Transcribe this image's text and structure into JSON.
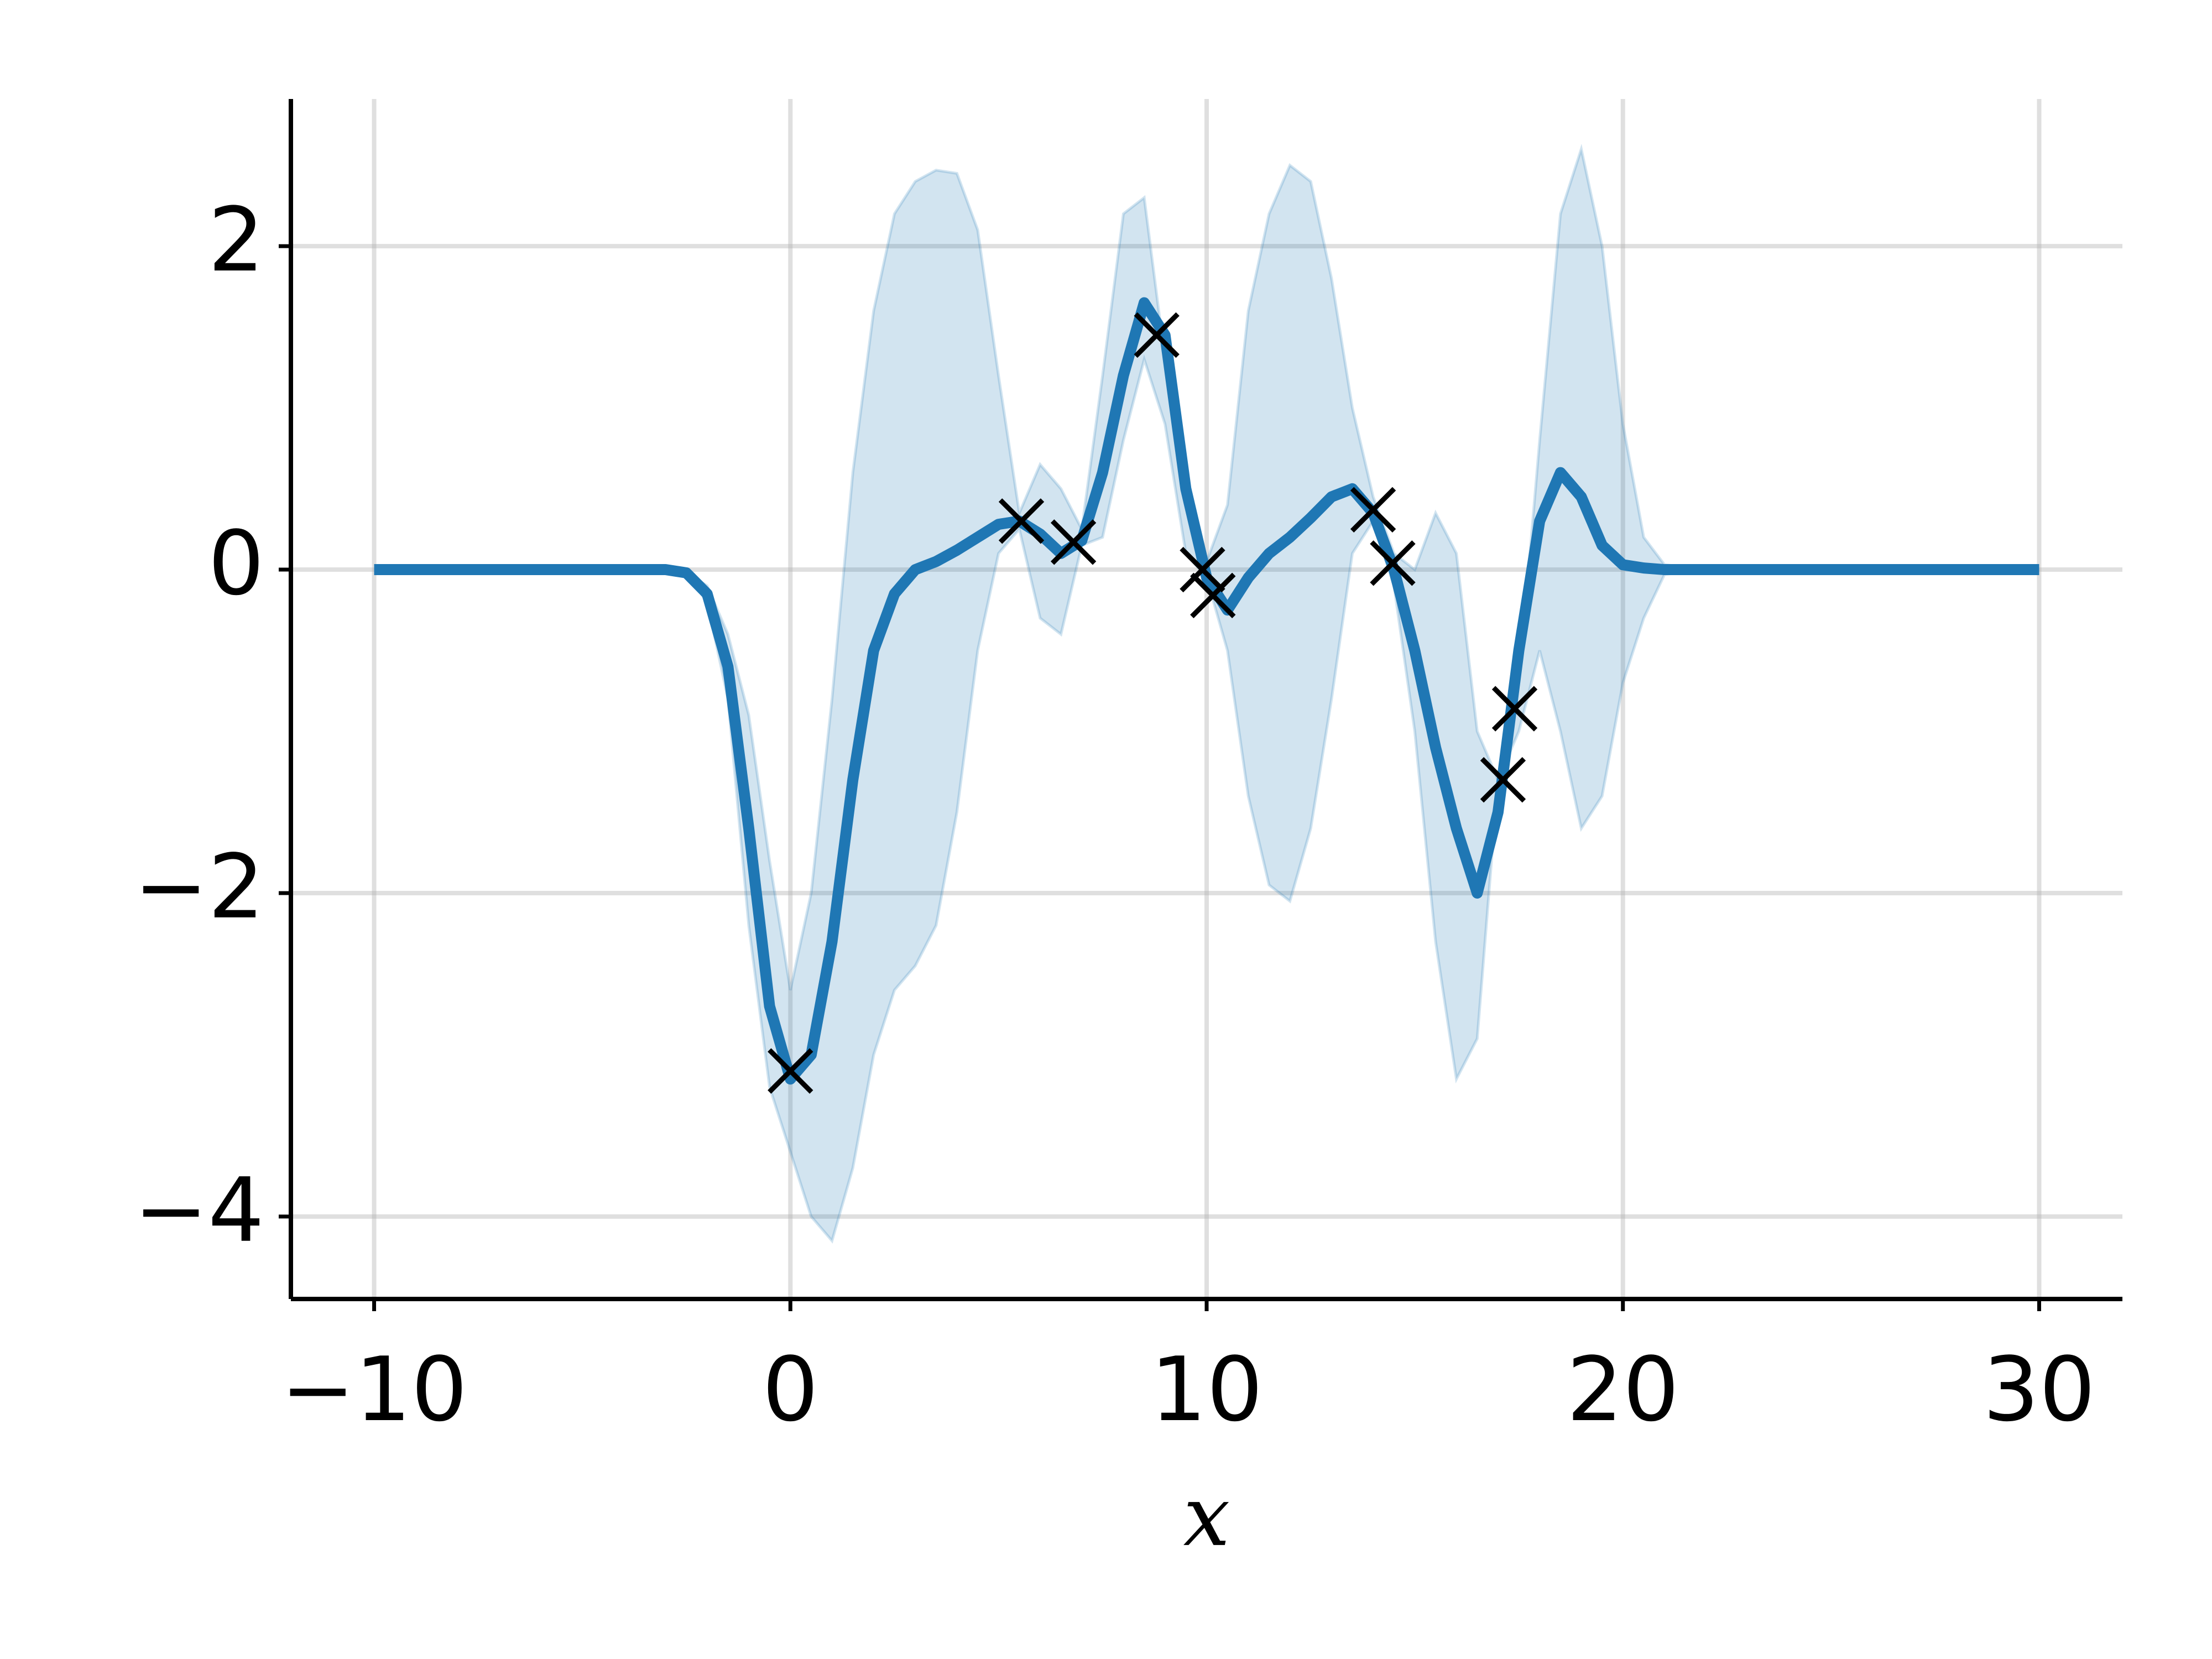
{
  "chart_data": {
    "type": "line",
    "xlabel": "x",
    "xlim": [
      -12,
      32
    ],
    "ylim": [
      -4.51,
      2.91
    ],
    "xticks": [
      {
        "value": -10,
        "label": "−10"
      },
      0,
      10,
      20,
      30
    ],
    "yticks": [
      {
        "value": -4,
        "label": "−4"
      },
      {
        "value": -2,
        "label": "−2"
      },
      0,
      2
    ],
    "grid": true,
    "x": [
      -10,
      -5,
      -3,
      -2.5,
      -2,
      -1.5,
      -1,
      -0.5,
      0,
      0.5,
      1,
      1.5,
      2,
      2.5,
      3,
      3.5,
      4,
      4.5,
      5,
      5.5,
      6,
      6.5,
      7,
      7.5,
      8,
      8.5,
      9,
      9.5,
      10,
      10.5,
      11,
      11.5,
      12,
      12.5,
      13,
      13.5,
      14,
      14.5,
      15,
      15.5,
      16,
      16.5,
      17,
      17.5,
      18,
      18.5,
      19,
      19.5,
      20,
      20.5,
      21,
      22,
      25,
      30
    ],
    "mean": {
      "color": "#1f77b4",
      "values": [
        0,
        0,
        0,
        -0.02,
        -0.15,
        -0.6,
        -1.6,
        -2.7,
        -3.15,
        -3.0,
        -2.3,
        -1.3,
        -0.5,
        -0.15,
        0.0,
        0.05,
        0.12,
        0.2,
        0.28,
        0.3,
        0.22,
        0.1,
        0.18,
        0.6,
        1.2,
        1.65,
        1.45,
        0.5,
        -0.05,
        -0.25,
        -0.05,
        0.1,
        0.2,
        0.32,
        0.45,
        0.5,
        0.35,
        0.0,
        -0.5,
        -1.1,
        -1.6,
        -2.0,
        -1.5,
        -0.5,
        0.3,
        0.6,
        0.45,
        0.15,
        0.03,
        0.01,
        0.0,
        0,
        0,
        0
      ]
    },
    "band": {
      "color": "#1f77b4",
      "upper": [
        0,
        0,
        0,
        -0.02,
        -0.1,
        -0.4,
        -0.9,
        -1.8,
        -2.6,
        -2.0,
        -0.8,
        0.6,
        1.6,
        2.2,
        2.4,
        2.47,
        2.45,
        2.1,
        1.2,
        0.35,
        0.65,
        0.5,
        0.25,
        1.2,
        2.2,
        2.3,
        1.3,
        0.5,
        0.05,
        0.4,
        1.6,
        2.2,
        2.5,
        2.4,
        1.8,
        1.0,
        0.45,
        0.1,
        0.0,
        0.35,
        0.1,
        -1.0,
        -1.3,
        -0.7,
        0.8,
        2.2,
        2.6,
        2.0,
        0.9,
        0.2,
        0.03,
        0,
        0,
        0
      ],
      "lower": [
        0,
        0,
        0,
        -0.02,
        -0.2,
        -0.8,
        -2.2,
        -3.2,
        -3.6,
        -4.0,
        -4.15,
        -3.7,
        -3.0,
        -2.6,
        -2.45,
        -2.2,
        -1.5,
        -0.5,
        0.1,
        0.25,
        -0.3,
        -0.4,
        0.15,
        0.2,
        0.8,
        1.3,
        0.9,
        0.1,
        -0.05,
        -0.5,
        -1.4,
        -1.95,
        -2.05,
        -1.6,
        -0.8,
        0.1,
        0.3,
        -0.1,
        -1.0,
        -2.3,
        -3.15,
        -2.9,
        -1.3,
        -1.0,
        -0.5,
        -1.0,
        -1.6,
        -1.4,
        -0.7,
        -0.3,
        -0.03,
        0,
        0,
        0
      ]
    },
    "observations": {
      "color": "#000000",
      "x": [
        0,
        5.55,
        6.8,
        8.8,
        9.9,
        10.15,
        14.0,
        14.47,
        17.12,
        17.4
      ],
      "y": [
        -3.1,
        0.3,
        0.17,
        1.45,
        0.0,
        -0.16,
        0.37,
        0.04,
        -1.3,
        -0.86
      ]
    }
  }
}
